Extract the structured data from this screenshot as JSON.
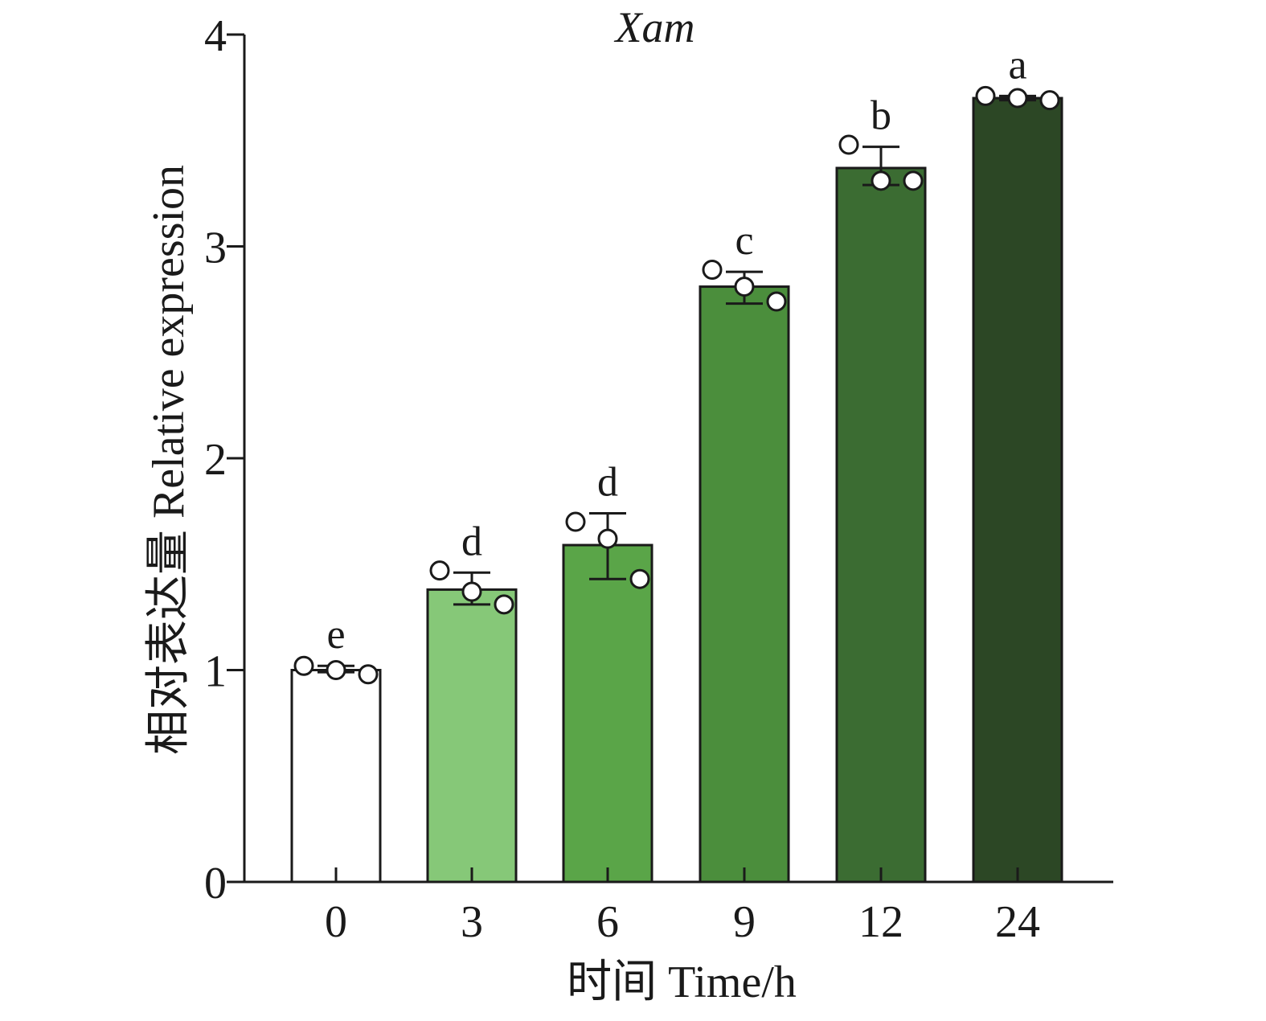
{
  "chart_data": {
    "type": "bar",
    "title": "Xam",
    "xlabel": "时间 Time/h",
    "ylabel": "相对表达量 Relative expression",
    "categories": [
      "0",
      "3",
      "6",
      "9",
      "12",
      "24"
    ],
    "values": [
      1.0,
      1.38,
      1.59,
      2.81,
      3.37,
      3.7
    ],
    "error_upper": [
      1.02,
      1.46,
      1.74,
      2.88,
      3.47,
      3.71
    ],
    "error_lower": [
      0.99,
      1.31,
      1.43,
      2.73,
      3.29,
      3.69
    ],
    "points": [
      [
        1.02,
        1.0,
        0.98
      ],
      [
        1.47,
        1.37,
        1.31
      ],
      [
        1.7,
        1.62,
        1.43
      ],
      [
        2.89,
        2.81,
        2.74
      ],
      [
        3.48,
        3.31,
        3.31
      ],
      [
        3.71,
        3.7,
        3.69
      ]
    ],
    "significance": [
      "e",
      "d",
      "d",
      "c",
      "b",
      "a"
    ],
    "colors": [
      "#ffffff",
      "#86c878",
      "#5aa548",
      "#4b8e3c",
      "#3b6c32",
      "#2c4725"
    ],
    "ylim": [
      0,
      4
    ],
    "yticks": [
      0,
      1,
      2,
      3,
      4
    ],
    "grid": false
  }
}
